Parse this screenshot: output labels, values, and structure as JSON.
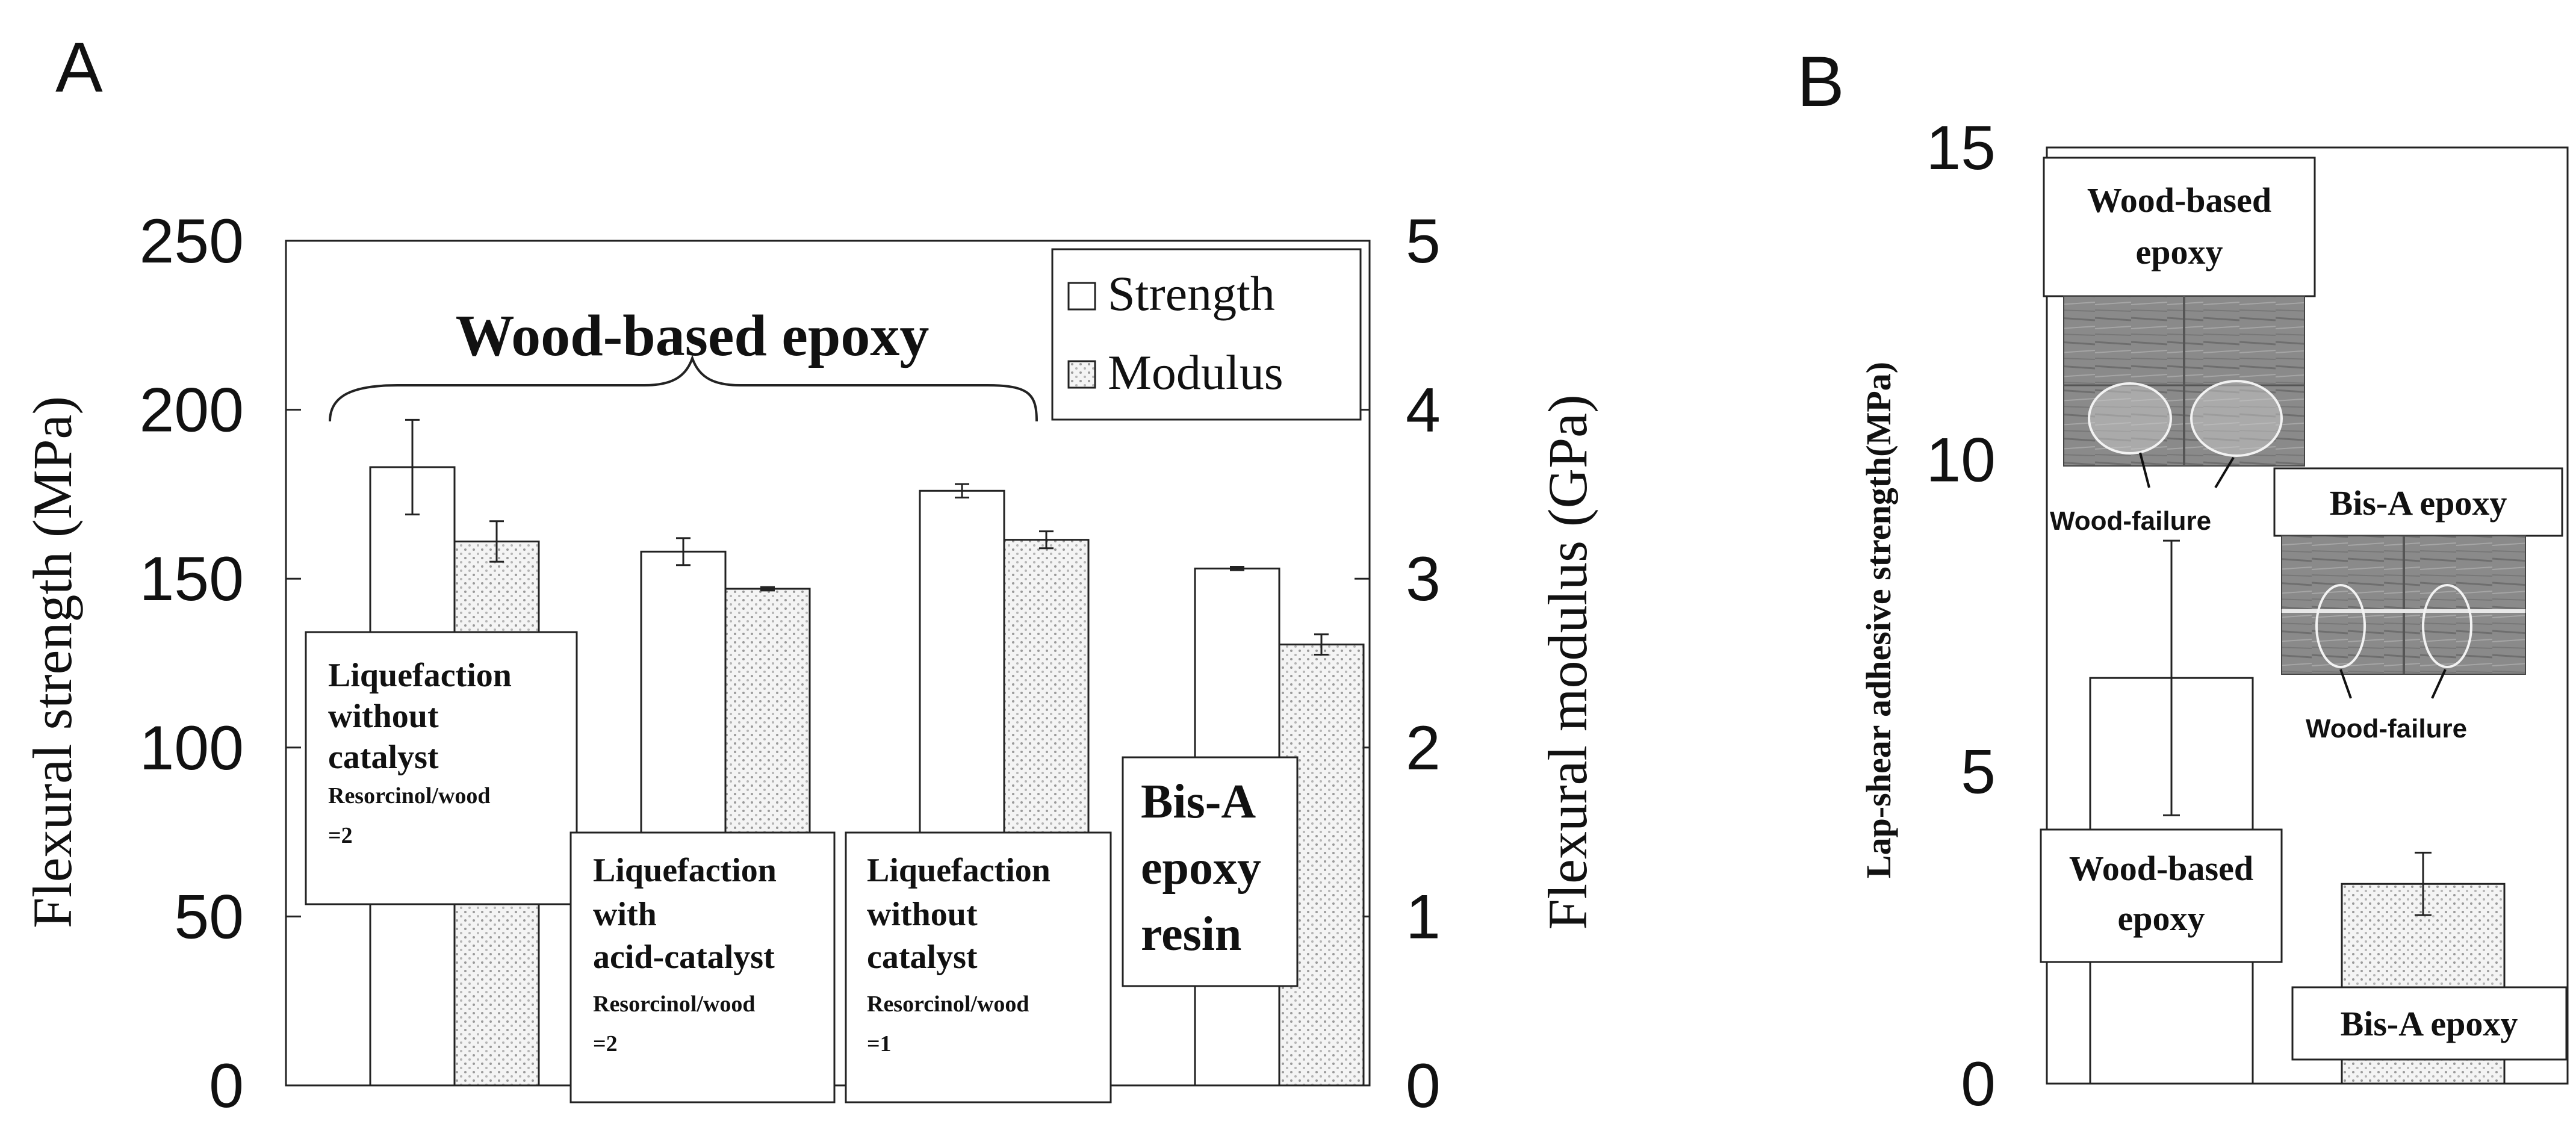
{
  "panels": {
    "a_label": "A",
    "b_label": "B"
  },
  "chart_data": [
    {
      "type": "bar",
      "panel": "A",
      "title": "Wood-based epoxy",
      "categories": [
        "Liquefaction without catalyst Resorcinol/wood =2",
        "Liquefaction with acid-catalyst Resorcinol/wood =2",
        "Liquefaction without catalyst Resorcinol/wood =1",
        "Bis-A epoxy resin"
      ],
      "series": [
        {
          "name": "Strength",
          "axis": "left",
          "values": [
            183,
            158,
            176,
            153
          ],
          "errors": [
            14,
            4,
            2,
            0.5
          ]
        },
        {
          "name": "Modulus",
          "axis": "right",
          "values": [
            3.22,
            2.94,
            3.23,
            2.61
          ],
          "errors": [
            0.12,
            0.01,
            0.05,
            0.06
          ]
        }
      ],
      "ylabel": "Flexural strength (MPa)",
      "ylabel_right": "Flexural modulus (GPa)",
      "ylim": [
        0,
        250
      ],
      "ylim_right": [
        0,
        5
      ],
      "yticks": [
        "0",
        "50",
        "100",
        "150",
        "200",
        "250"
      ],
      "yticks_right": [
        "0",
        "1",
        "2",
        "3",
        "4",
        "5"
      ],
      "legend": {
        "position": "top-right",
        "entries": [
          "Strength",
          "Modulus"
        ]
      },
      "annotations": {
        "bar1": {
          "lines": [
            "Liquefaction",
            "without",
            "catalyst"
          ],
          "small": "Resorcinol/wood",
          "ratio": "=2"
        },
        "bar2": {
          "lines": [
            "Liquefaction",
            "with",
            "acid-catalyst"
          ],
          "small": "Resorcinol/wood",
          "ratio": "=2"
        },
        "bar3": {
          "lines": [
            "Liquefaction",
            "without",
            "catalyst"
          ],
          "small": "Resorcinol/wood",
          "ratio": "=1"
        },
        "bar4": {
          "lines": [
            "Bis-A",
            "epoxy",
            "resin"
          ]
        }
      }
    },
    {
      "type": "bar",
      "panel": "B",
      "categories": [
        "Wood-based epoxy",
        "Bis-A epoxy"
      ],
      "values": [
        6.5,
        3.2
      ],
      "errors": [
        2.2,
        0.5
      ],
      "ylabel": "Lap-shear adhesive strength(MPa)",
      "ylim": [
        0,
        15
      ],
      "yticks": [
        "0",
        "5",
        "10",
        "15"
      ],
      "annotations": {
        "bar_labels": [
          "Wood-based epoxy",
          "Bis-A epoxy"
        ],
        "photo_titles": [
          "Wood-based epoxy",
          "Bis-A epoxy"
        ],
        "photo_failure_label": "Wood-failure"
      }
    }
  ]
}
